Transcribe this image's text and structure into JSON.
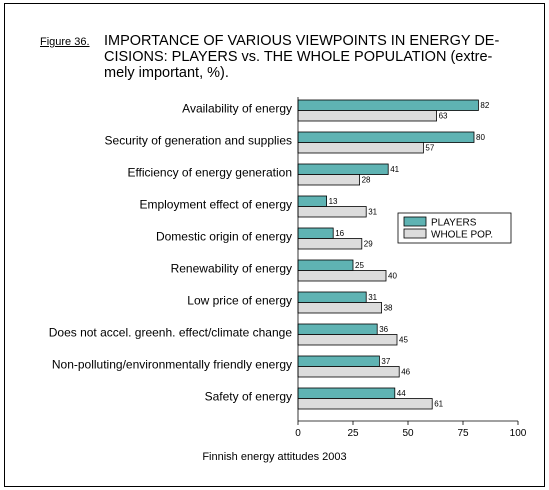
{
  "figure_label": "Figure 36.",
  "title": "IMPORTANCE OF VARIOUS VIEWPOINTS IN ENERGY DECISIONS: PLAYERS vs. THE WHOLE POPULATION (extremely important, %).",
  "title_lines": [
    "IMPORTANCE OF VARIOUS VIEWPOINTS IN ENERGY DE-",
    "CISIONS: PLAYERS vs. THE WHOLE POPULATION (extre-",
    "mely important, %)."
  ],
  "source": "Finnish energy attitudes 2003",
  "colors": {
    "players": "#5fb3b3",
    "whole_pop": "#dcdcdc",
    "outline": "#000000"
  },
  "chart_data": {
    "type": "bar",
    "orientation": "horizontal",
    "categories": [
      "Availability of energy",
      "Security of generation and supplies",
      "Efficiency of energy generation",
      "Employment effect of energy",
      "Domestic origin of energy",
      "Renewability of energy",
      "Low price of energy",
      "Does not accel. greenh. effect/climate change",
      "Non-polluting/environmentally friendly energy",
      "Safety of energy"
    ],
    "series": [
      {
        "name": "PLAYERS",
        "values": [
          82,
          80,
          41,
          13,
          16,
          25,
          31,
          36,
          37,
          44
        ]
      },
      {
        "name": "WHOLE POP.",
        "values": [
          63,
          57,
          28,
          31,
          29,
          40,
          38,
          45,
          46,
          61
        ]
      }
    ],
    "xlim": [
      0,
      100
    ],
    "xticks": [
      0,
      25,
      50,
      75,
      100
    ],
    "legend": "right",
    "grid": false
  }
}
